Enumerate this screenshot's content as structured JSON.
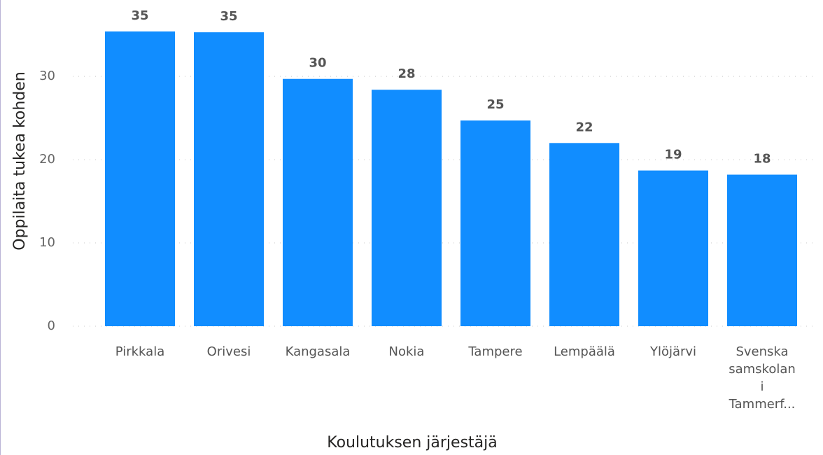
{
  "chart_data": {
    "type": "bar",
    "x_label": "Koulutuksen järjestäjä",
    "y_label": "Oppilaita tukea kohden",
    "categories": [
      "Pirkkala",
      "Orivesi",
      "Kangasala",
      "Nokia",
      "Tampere",
      "Lempäälä",
      "Ylöjärvi",
      "Svenska samskolan i Tammerf..."
    ],
    "values": [
      35.4,
      35.3,
      29.7,
      28.4,
      24.7,
      22.0,
      18.7,
      18.2
    ],
    "value_labels": [
      "35",
      "35",
      "30",
      "28",
      "25",
      "22",
      "19",
      "18"
    ],
    "color": "#118dff",
    "ylim": [
      0,
      38
    ],
    "yticks": [
      0,
      10,
      20,
      30
    ],
    "grid": true
  }
}
